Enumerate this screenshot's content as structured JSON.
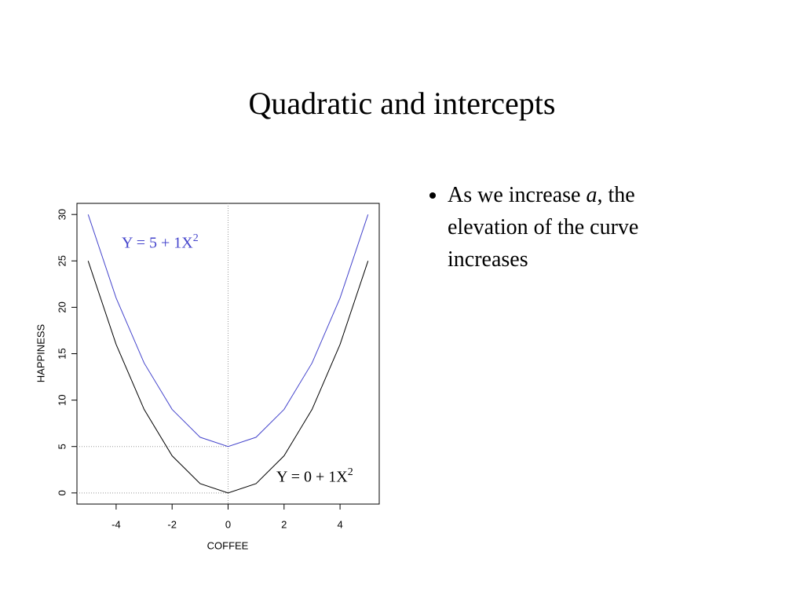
{
  "title": "Quadratic and intercepts",
  "bullets": [
    {
      "before": "As we increase ",
      "italic": "a",
      "after": ", the elevation of the curve increases"
    }
  ],
  "chart_data": {
    "type": "line",
    "x_label": "COFFEE",
    "y_label": "HAPPINESS",
    "x": [
      -5,
      -4,
      -3,
      -2,
      -1,
      0,
      1,
      2,
      3,
      4,
      5
    ],
    "series": [
      {
        "color": "#4444cc",
        "values": [
          30,
          21,
          14,
          9,
          6,
          5,
          6,
          9,
          14,
          21,
          30
        ]
      },
      {
        "color": "#000000",
        "values": [
          25,
          16,
          9,
          4,
          1,
          0,
          1,
          4,
          9,
          16,
          25
        ]
      }
    ],
    "annotations": [
      {
        "text": "Y = 5 + 1X",
        "sup": "2",
        "color": "#4444cc"
      },
      {
        "text": "Y = 0 + 1X",
        "sup": "2",
        "color": "#000000"
      }
    ],
    "reference_x": [
      0
    ],
    "reference_y": [
      5,
      0
    ],
    "xlim": [
      -5.4,
      5.4
    ],
    "ylim": [
      -1.2,
      31.2
    ],
    "xticks": [
      -4,
      -2,
      0,
      2,
      4
    ],
    "yticks": [
      0,
      5,
      10,
      15,
      20,
      25,
      30
    ]
  }
}
